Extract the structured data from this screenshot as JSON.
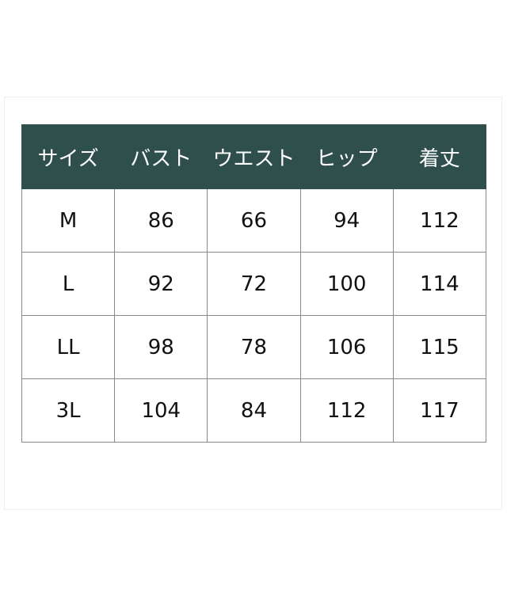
{
  "colors": {
    "header_bg": "#2f4f4c",
    "header_text": "#ffffff"
  },
  "table": {
    "headers": [
      "サイズ",
      "バスト",
      "ウエスト",
      "ヒップ",
      "着丈"
    ],
    "rows": [
      [
        "M",
        "86",
        "66",
        "94",
        "112"
      ],
      [
        "L",
        "92",
        "72",
        "100",
        "114"
      ],
      [
        "LL",
        "98",
        "78",
        "106",
        "115"
      ],
      [
        "3L",
        "104",
        "84",
        "112",
        "117"
      ]
    ]
  }
}
